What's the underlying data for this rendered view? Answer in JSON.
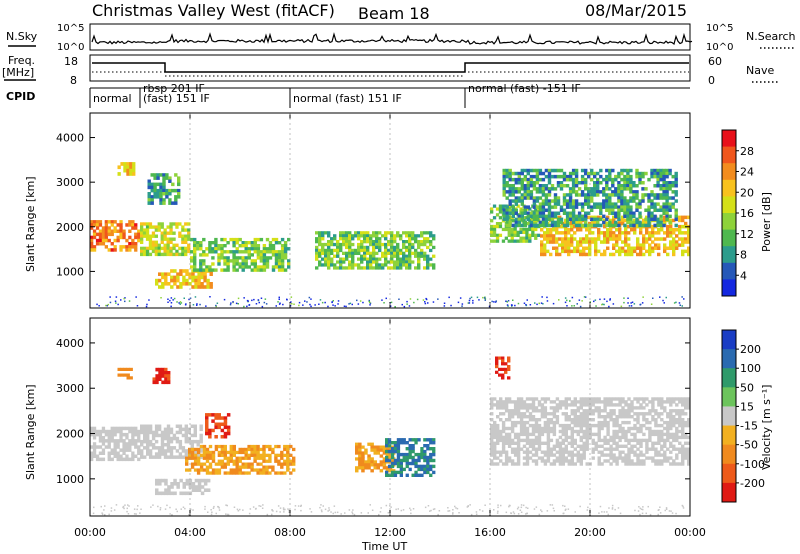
{
  "header": {
    "title": "Christmas Valley West (fitACF)",
    "beam": "Beam 18",
    "date": "08/Mar/2015"
  },
  "top_panel": {
    "nsky_label": "N.Sky",
    "nsearch_label": "N.Search",
    "y_ticks": [
      "10^5",
      "10^0"
    ],
    "freq_label_line1": "Freq.",
    "freq_label_line2": "[MHz]",
    "freq_ticks": [
      "18",
      "8"
    ],
    "nave_label": "Nave",
    "nave_ticks": [
      "60",
      "0"
    ],
    "cpid_label": "CPID",
    "cpid_entries": [
      {
        "text": "normal",
        "start": 0.0
      },
      {
        "text": "rbsp 201 IF",
        "start": 2.0
      },
      {
        "text": "(fast) 151 IF",
        "start": 2.0
      },
      {
        "text": "normal (fast) 151 IF",
        "start": 8.0
      },
      {
        "text": "normal (fast) -151 IF",
        "start": 15.0
      }
    ]
  },
  "colorbars": {
    "power": {
      "label": "Power [dB]",
      "ticks": [
        "28",
        "24",
        "20",
        "16",
        "12",
        "8",
        "4"
      ],
      "colors": [
        "#e8101a",
        "#f0561c",
        "#f28c1e",
        "#f8c21e",
        "#d4e018",
        "#8ed23a",
        "#4fb84f",
        "#2c9c8c",
        "#2558b8",
        "#1428e0"
      ]
    },
    "velocity": {
      "label": "Velocity [m s⁻¹]",
      "ticks": [
        "200",
        "100",
        "50",
        "15",
        "-15",
        "-50",
        "-100",
        "-200"
      ],
      "colors": [
        "#1a3dc4",
        "#2a6ab0",
        "#2f9a6a",
        "#6cc45c",
        "#c8c8c8",
        "#f2b020",
        "#f08a1e",
        "#ee5a1a",
        "#e01a14"
      ]
    }
  },
  "x_axis": {
    "label": "Time UT",
    "ticks": [
      "00:00",
      "04:00",
      "08:00",
      "12:00",
      "16:00",
      "20:00",
      "00:00"
    ]
  },
  "y_axis": {
    "label": "Slant Range [km]",
    "ticks": [
      "1000",
      "2000",
      "3000",
      "4000"
    ]
  },
  "chart_data": [
    {
      "type": "heatmap",
      "name": "power",
      "xlim_hours": [
        0,
        24
      ],
      "ylim_km": [
        180,
        4550
      ],
      "regions": [
        {
          "t0": 0.0,
          "t1": 2.0,
          "r0": 1450,
          "r1": 2150,
          "value": 24
        },
        {
          "t0": 1.1,
          "t1": 1.8,
          "r0": 3150,
          "r1": 3450,
          "value": 20
        },
        {
          "t0": 2.0,
          "t1": 4.0,
          "r0": 1350,
          "r1": 2100,
          "value": 16
        },
        {
          "t0": 2.6,
          "t1": 4.9,
          "r0": 620,
          "r1": 1050,
          "value": 20
        },
        {
          "t0": 4.0,
          "t1": 8.0,
          "r0": 1000,
          "r1": 1750,
          "value": 12
        },
        {
          "t0": 2.3,
          "t1": 3.6,
          "r0": 2500,
          "r1": 3200,
          "value": 8
        },
        {
          "t0": 9.0,
          "t1": 13.8,
          "r0": 1050,
          "r1": 1900,
          "value": 12
        },
        {
          "t0": 16.0,
          "t1": 18.0,
          "r0": 1650,
          "r1": 2500,
          "value": 12
        },
        {
          "t0": 18.0,
          "t1": 24.0,
          "r0": 1350,
          "r1": 2250,
          "value": 20
        },
        {
          "t0": 16.5,
          "t1": 23.5,
          "r0": 2000,
          "r1": 3300,
          "value": 8
        }
      ]
    },
    {
      "type": "heatmap",
      "name": "velocity",
      "xlim_hours": [
        0,
        24
      ],
      "ylim_km": [
        180,
        4550
      ],
      "regions": [
        {
          "t0": 0.0,
          "t1": 2.0,
          "r0": 1400,
          "r1": 2150,
          "value": 0
        },
        {
          "t0": 2.0,
          "t1": 4.5,
          "r0": 1450,
          "r1": 2200,
          "value": 0
        },
        {
          "t0": 3.8,
          "t1": 8.2,
          "r0": 1100,
          "r1": 1750,
          "value": -50
        },
        {
          "t0": 2.6,
          "t1": 4.8,
          "r0": 650,
          "r1": 1000,
          "value": 0
        },
        {
          "t0": 4.6,
          "t1": 5.6,
          "r0": 1900,
          "r1": 2450,
          "value": -200
        },
        {
          "t0": 1.1,
          "t1": 1.7,
          "r0": 3200,
          "r1": 3450,
          "value": -100
        },
        {
          "t0": 2.5,
          "t1": 3.2,
          "r0": 3100,
          "r1": 3450,
          "value": -200
        },
        {
          "t0": 10.6,
          "t1": 12.2,
          "r0": 1150,
          "r1": 1800,
          "value": -50
        },
        {
          "t0": 11.8,
          "t1": 13.8,
          "r0": 1050,
          "r1": 1900,
          "value": 100
        },
        {
          "t0": 16.0,
          "t1": 24.0,
          "r0": 1300,
          "r1": 2800,
          "value": 0
        },
        {
          "t0": 16.2,
          "t1": 16.8,
          "r0": 3200,
          "r1": 3700,
          "value": -200
        }
      ]
    }
  ]
}
